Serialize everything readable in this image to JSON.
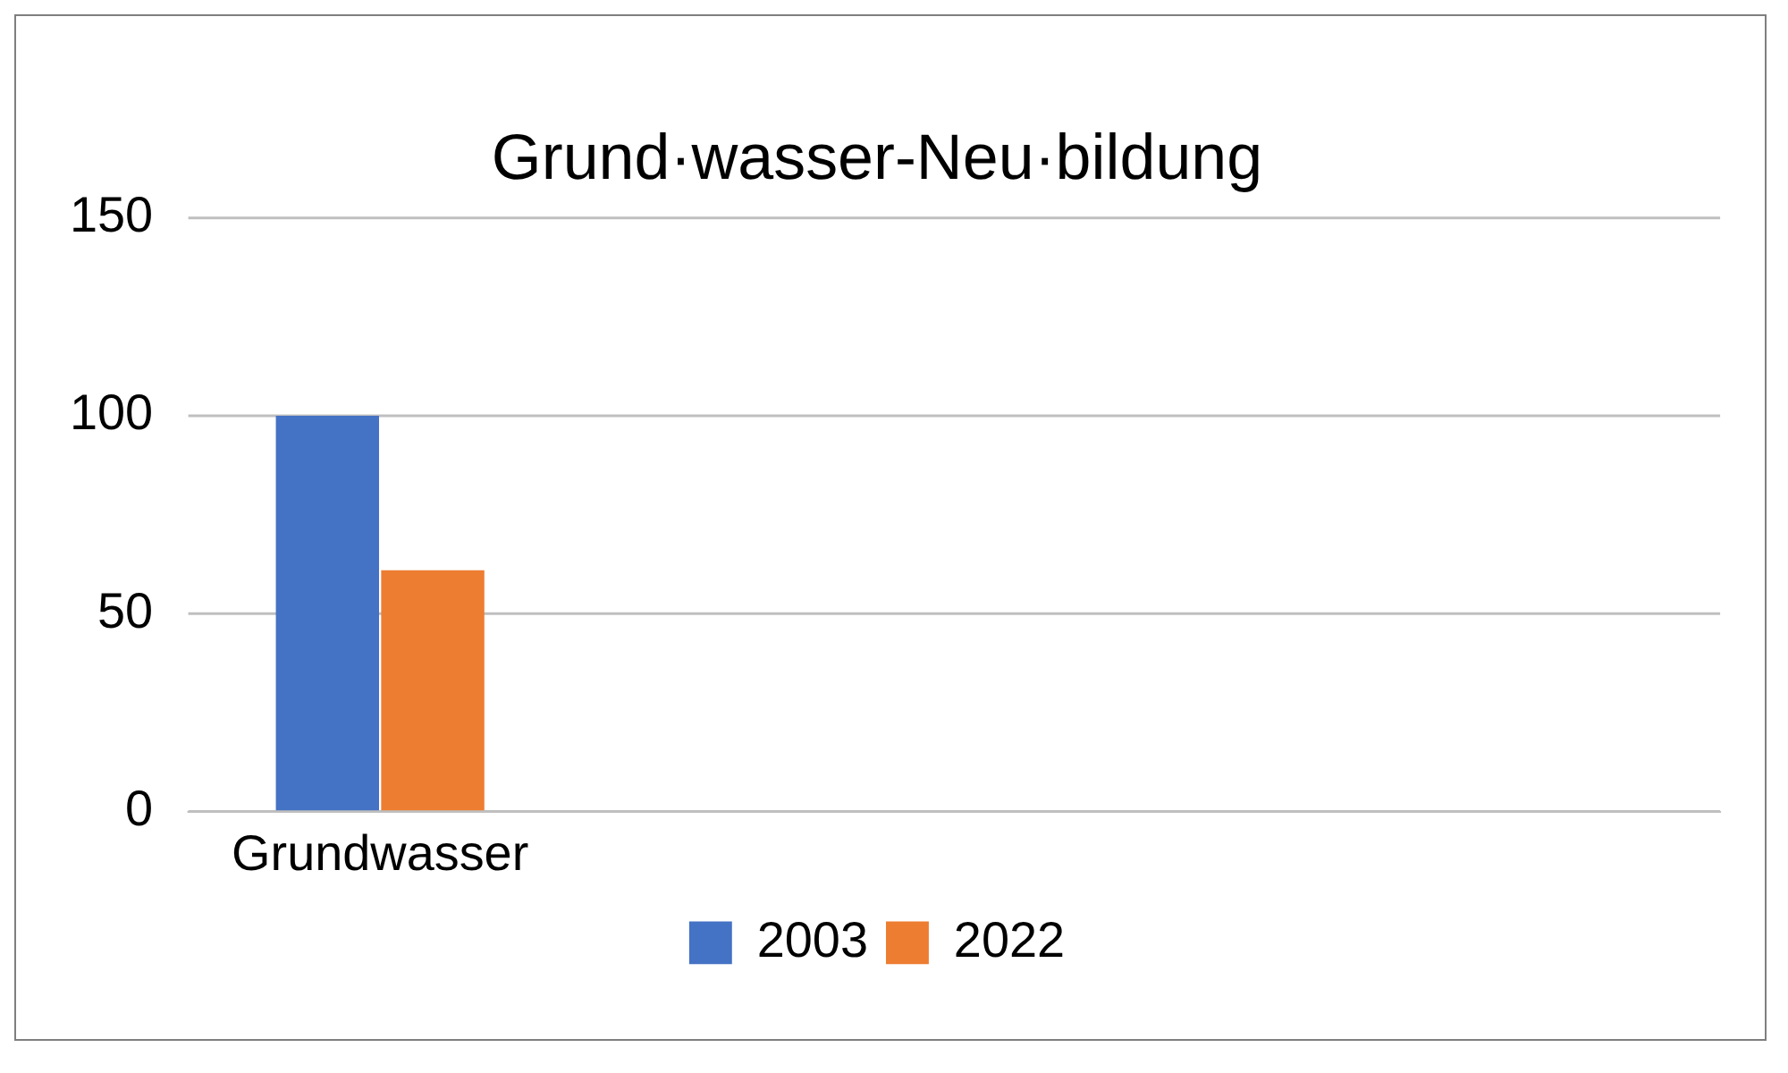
{
  "chart_data": {
    "type": "bar",
    "title": "Grund·wasser-Neu·bildung",
    "categories": [
      "Grundwasser",
      null,
      null,
      null
    ],
    "series": [
      {
        "name": "2003",
        "color": "#4472c4",
        "values": [
          100,
          null,
          null,
          null
        ]
      },
      {
        "name": "2022",
        "color": "#ed7d31",
        "values": [
          61,
          null,
          null,
          null
        ]
      }
    ],
    "ylim": [
      0,
      150
    ],
    "yticks": [
      0,
      50,
      100,
      150
    ],
    "grid": "y",
    "legend": "bottom"
  }
}
